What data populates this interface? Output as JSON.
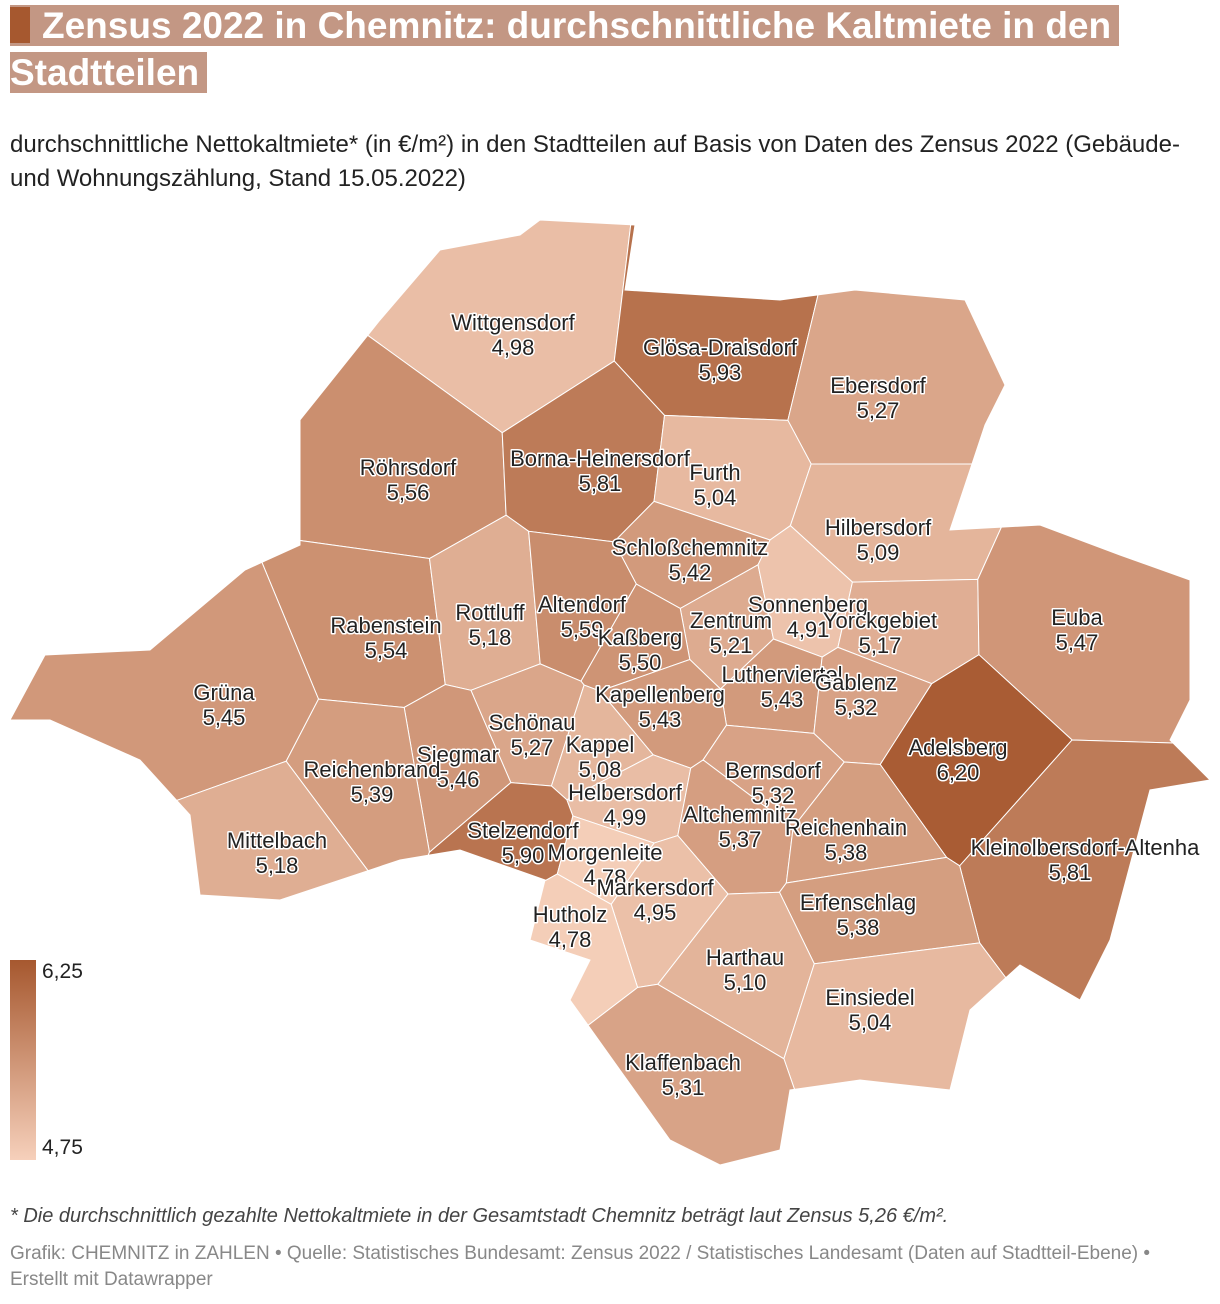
{
  "chart_data": {
    "type": "map",
    "title": "Zensus 2022 in Chemnitz: durchschnittliche Kaltmiete in den Stadtteilen",
    "subtitle": "durchschnittliche Nettokaltmiete* (in €/m²) in den Stadtteilen auf Basis von Daten des Zensus 2022 (Gebäude- und Wohnungszählung, Stand 15.05.2022)",
    "categories": [
      "Wittgensdorf",
      "Glösa-Draisdorf",
      "Ebersdorf",
      "Röhrsdorf",
      "Borna-Heinersdorf",
      "Furth",
      "Hilbersdorf",
      "Schloßchemnitz",
      "Rabenstein",
      "Rottluff",
      "Altendorf",
      "Zentrum",
      "Sonnenberg",
      "Yorckgebiet",
      "Euba",
      "Kaßberg",
      "Grüna",
      "Lutherviertel",
      "Gablenz",
      "Kapellenberg",
      "Adelsberg",
      "Schönau",
      "Kappel",
      "Siegmar",
      "Reichenbrand",
      "Bernsdorf",
      "Helbersdorf",
      "Altchemnitz",
      "Reichenhain",
      "Mittelbach",
      "Stelzendorf",
      "Kleinolbersdorf-Altenha",
      "Morgenleite",
      "Markersdorf",
      "Erfenschlag",
      "Hutholz",
      "Harthau",
      "Einsiedel",
      "Klaffenbach"
    ],
    "values": [
      4.98,
      5.93,
      5.27,
      5.56,
      5.81,
      5.04,
      5.09,
      5.42,
      5.54,
      5.18,
      5.59,
      5.21,
      4.91,
      5.17,
      5.47,
      5.5,
      5.45,
      5.43,
      5.32,
      5.43,
      6.2,
      5.27,
      5.08,
      5.46,
      5.39,
      5.32,
      4.99,
      5.37,
      5.38,
      5.18,
      5.9,
      5.81,
      4.78,
      4.95,
      5.38,
      4.78,
      5.1,
      5.04,
      5.31
    ],
    "value_labels": [
      "4,98",
      "5,93",
      "5,27",
      "5,56",
      "5,81",
      "5,04",
      "5,09",
      "5,42",
      "5,54",
      "5,18",
      "5,59",
      "5,21",
      "4,91",
      "5,17",
      "5,47",
      "5,50",
      "5,45",
      "5,43",
      "5,32",
      "5,43",
      "6,20",
      "5,27",
      "5,08",
      "5,46",
      "5,39",
      "5,32",
      "4,99",
      "5,37",
      "5,38",
      "5,18",
      "5,90",
      "5,81",
      "4,78",
      "4,95",
      "5,38",
      "4,78",
      "5,10",
      "5,04",
      "5,31"
    ],
    "color_range": [
      "#f6d0bb",
      "#a6582f"
    ],
    "legend_ticks": [
      {
        "value": 6.25,
        "label": "6,25"
      },
      {
        "value": 4.75,
        "label": "4,75"
      }
    ],
    "footnote": "* Die durchschnittlich gezahlte Nettokaltmiete in der Gesamtstadt Chemnitz beträgt laut Zensus 5,26 €/m².",
    "credits": "Grafik: CHEMNITZ in ZAHLEN • Quelle: Statistisches Bundesamt: Zensus 2022 / Statistisches Landesamt (Daten auf Stadtteil-Ebene) • Erstellt mit Datawrapper"
  }
}
